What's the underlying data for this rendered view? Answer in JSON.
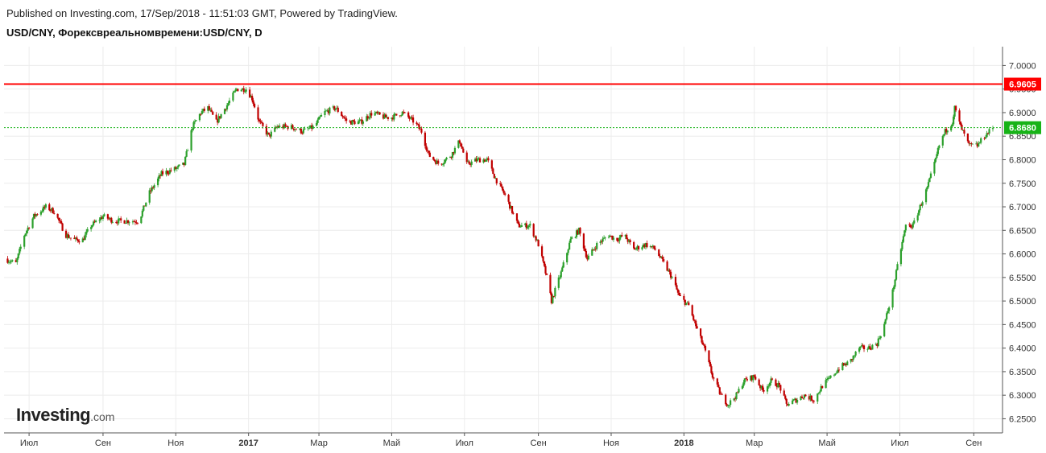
{
  "header": {
    "published": "Published on Investing.com, 17/Sep/2018 - 11:51:03 GMT, Powered by TradingView.",
    "title": "USD/CNY, Форексвреальномвремени:USD/CNY, D"
  },
  "logo": {
    "main": "Investing",
    "suffix": ".com"
  },
  "colors": {
    "up": "#2ca02c",
    "down": "#c00000",
    "resistance": "#ff0000",
    "current": "#17b317",
    "grid": "#ececec",
    "axis": "#555555"
  },
  "chart_data": {
    "type": "candlestick",
    "title": "USD/CNY, Форексвреальномвремени:USD/CNY, D",
    "timeframe": "D",
    "x_range": [
      "2016-06-10",
      "2018-09-17"
    ],
    "ylim": [
      6.22,
      7.04
    ],
    "y_ticks": [
      "7.0000",
      "6.9500",
      "6.9000",
      "6.8500",
      "6.8000",
      "6.7500",
      "6.7000",
      "6.6500",
      "6.6000",
      "6.5500",
      "6.5000",
      "6.4500",
      "6.4000",
      "6.3500",
      "6.3000",
      "6.2500"
    ],
    "x_ticks": [
      {
        "date": "2016-07-01",
        "label": "Июл",
        "bold": false
      },
      {
        "date": "2016-09-01",
        "label": "Сен",
        "bold": false
      },
      {
        "date": "2016-11-01",
        "label": "Ноя",
        "bold": false
      },
      {
        "date": "2017-01-01",
        "label": "2017",
        "bold": true
      },
      {
        "date": "2017-03-01",
        "label": "Мар",
        "bold": false
      },
      {
        "date": "2017-05-01",
        "label": "Май",
        "bold": false
      },
      {
        "date": "2017-07-01",
        "label": "Июл",
        "bold": false
      },
      {
        "date": "2017-09-01",
        "label": "Сен",
        "bold": false
      },
      {
        "date": "2017-11-01",
        "label": "Ноя",
        "bold": false
      },
      {
        "date": "2018-01-01",
        "label": "2018",
        "bold": true
      },
      {
        "date": "2018-03-01",
        "label": "Мар",
        "bold": false
      },
      {
        "date": "2018-05-01",
        "label": "Май",
        "bold": false
      },
      {
        "date": "2018-07-01",
        "label": "Июл",
        "bold": false
      },
      {
        "date": "2018-09-01",
        "label": "Сен",
        "bold": false
      }
    ],
    "horizontal_lines": [
      {
        "value": 6.9605,
        "label": "6.9605",
        "kind": "resistance"
      },
      {
        "value": 6.868,
        "label": "6.8680",
        "kind": "current"
      }
    ],
    "price_path": [
      [
        "2016-06-10",
        6.59
      ],
      [
        "2016-06-20",
        6.58
      ],
      [
        "2016-06-27",
        6.64
      ],
      [
        "2016-07-05",
        6.68
      ],
      [
        "2016-07-15",
        6.7
      ],
      [
        "2016-07-22",
        6.69
      ],
      [
        "2016-08-01",
        6.64
      ],
      [
        "2016-08-08",
        6.63
      ],
      [
        "2016-08-15",
        6.63
      ],
      [
        "2016-08-22",
        6.66
      ],
      [
        "2016-09-01",
        6.68
      ],
      [
        "2016-09-10",
        6.67
      ],
      [
        "2016-09-20",
        6.67
      ],
      [
        "2016-10-01",
        6.67
      ],
      [
        "2016-10-10",
        6.73
      ],
      [
        "2016-10-20",
        6.77
      ],
      [
        "2016-10-31",
        6.78
      ],
      [
        "2016-11-08",
        6.79
      ],
      [
        "2016-11-15",
        6.87
      ],
      [
        "2016-11-22",
        6.9
      ],
      [
        "2016-11-28",
        6.91
      ],
      [
        "2016-12-05",
        6.88
      ],
      [
        "2016-12-15",
        6.92
      ],
      [
        "2016-12-22",
        6.95
      ],
      [
        "2016-12-30",
        6.95
      ],
      [
        "2017-01-04",
        6.93
      ],
      [
        "2017-01-10",
        6.88
      ],
      [
        "2017-01-18",
        6.85
      ],
      [
        "2017-01-25",
        6.87
      ],
      [
        "2017-02-05",
        6.87
      ],
      [
        "2017-02-15",
        6.86
      ],
      [
        "2017-02-25",
        6.87
      ],
      [
        "2017-03-05",
        6.9
      ],
      [
        "2017-03-15",
        6.91
      ],
      [
        "2017-03-25",
        6.88
      ],
      [
        "2017-04-05",
        6.88
      ],
      [
        "2017-04-15",
        6.9
      ],
      [
        "2017-04-25",
        6.89
      ],
      [
        "2017-05-01",
        6.89
      ],
      [
        "2017-05-10",
        6.9
      ],
      [
        "2017-05-20",
        6.88
      ],
      [
        "2017-05-26",
        6.86
      ],
      [
        "2017-06-01",
        6.81
      ],
      [
        "2017-06-10",
        6.79
      ],
      [
        "2017-06-20",
        6.81
      ],
      [
        "2017-06-27",
        6.84
      ],
      [
        "2017-07-03",
        6.79
      ],
      [
        "2017-07-12",
        6.8
      ],
      [
        "2017-07-20",
        6.8
      ],
      [
        "2017-07-27",
        6.76
      ],
      [
        "2017-08-05",
        6.72
      ],
      [
        "2017-08-15",
        6.66
      ],
      [
        "2017-08-25",
        6.66
      ],
      [
        "2017-09-01",
        6.62
      ],
      [
        "2017-09-08",
        6.55
      ],
      [
        "2017-09-12",
        6.5
      ],
      [
        "2017-09-20",
        6.56
      ],
      [
        "2017-09-28",
        6.63
      ],
      [
        "2017-10-05",
        6.65
      ],
      [
        "2017-10-12",
        6.59
      ],
      [
        "2017-10-20",
        6.62
      ],
      [
        "2017-10-30",
        6.64
      ],
      [
        "2017-11-05",
        6.63
      ],
      [
        "2017-11-12",
        6.64
      ],
      [
        "2017-11-20",
        6.61
      ],
      [
        "2017-11-30",
        6.62
      ],
      [
        "2017-12-08",
        6.61
      ],
      [
        "2017-12-15",
        6.58
      ],
      [
        "2017-12-22",
        6.55
      ],
      [
        "2017-12-28",
        6.51
      ],
      [
        "2018-01-05",
        6.49
      ],
      [
        "2018-01-12",
        6.44
      ],
      [
        "2018-01-18",
        6.4
      ],
      [
        "2018-01-25",
        6.34
      ],
      [
        "2018-02-01",
        6.3
      ],
      [
        "2018-02-07",
        6.28
      ],
      [
        "2018-02-14",
        6.3
      ],
      [
        "2018-02-20",
        6.33
      ],
      [
        "2018-03-01",
        6.34
      ],
      [
        "2018-03-08",
        6.31
      ],
      [
        "2018-03-15",
        6.33
      ],
      [
        "2018-03-22",
        6.32
      ],
      [
        "2018-03-28",
        6.28
      ],
      [
        "2018-04-05",
        6.29
      ],
      [
        "2018-04-12",
        6.3
      ],
      [
        "2018-04-20",
        6.29
      ],
      [
        "2018-04-27",
        6.32
      ],
      [
        "2018-05-05",
        6.34
      ],
      [
        "2018-05-12",
        6.36
      ],
      [
        "2018-05-20",
        6.37
      ],
      [
        "2018-05-28",
        6.4
      ],
      [
        "2018-06-05",
        6.4
      ],
      [
        "2018-06-12",
        6.41
      ],
      [
        "2018-06-18",
        6.45
      ],
      [
        "2018-06-25",
        6.52
      ],
      [
        "2018-07-01",
        6.6
      ],
      [
        "2018-07-06",
        6.66
      ],
      [
        "2018-07-12",
        6.66
      ],
      [
        "2018-07-18",
        6.7
      ],
      [
        "2018-07-24",
        6.74
      ],
      [
        "2018-07-30",
        6.79
      ],
      [
        "2018-08-03",
        6.83
      ],
      [
        "2018-08-08",
        6.86
      ],
      [
        "2018-08-14",
        6.88
      ],
      [
        "2018-08-16",
        6.91
      ],
      [
        "2018-08-21",
        6.87
      ],
      [
        "2018-08-28",
        6.83
      ],
      [
        "2018-09-04",
        6.83
      ],
      [
        "2018-09-10",
        6.85
      ],
      [
        "2018-09-17",
        6.868
      ]
    ]
  }
}
